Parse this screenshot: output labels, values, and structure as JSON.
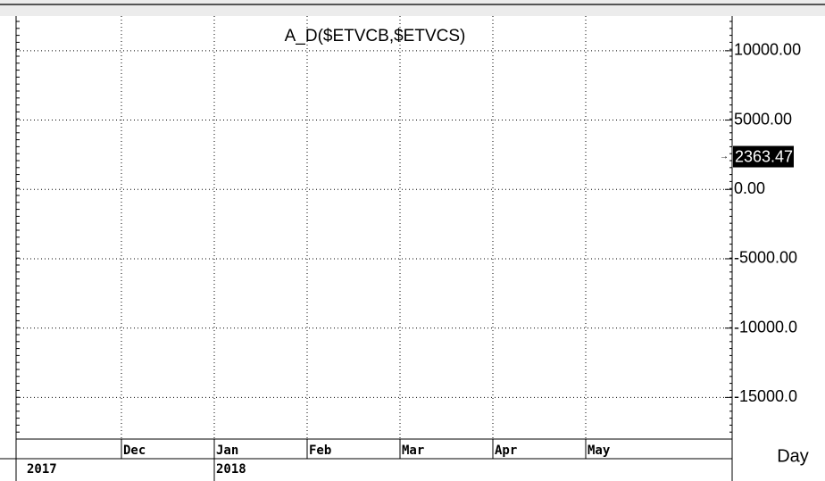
{
  "chart_data": {
    "type": "line",
    "title": "A_D($ETVCB,$ETVCS)",
    "categories": [
      "Dec",
      "Jan",
      "Feb",
      "Mar",
      "Apr",
      "May"
    ],
    "years": [
      "2017",
      "2018"
    ],
    "period": "Day",
    "last_value": 2363.47,
    "ylim": [
      -18000,
      12500
    ],
    "yticks": [
      {
        "value": 10000,
        "label": "10000.00"
      },
      {
        "value": 5000,
        "label": "5000.00"
      },
      {
        "value": 0,
        "label": "0.00"
      },
      {
        "value": -5000,
        "label": "-5000.00"
      },
      {
        "value": -10000,
        "label": "-10000.0"
      },
      {
        "value": -15000,
        "label": "-15000.0"
      }
    ],
    "grid": true
  }
}
